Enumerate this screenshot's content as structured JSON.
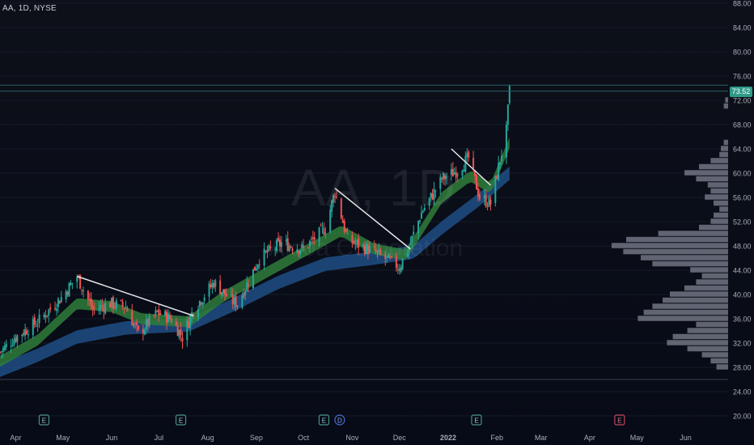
{
  "header": {
    "symbol_label": "AA, 1D, NYSE"
  },
  "watermark": {
    "symbol": "AA, 1D",
    "name": "Alcoa Corporation"
  },
  "colors": {
    "up": "#26a69a",
    "down": "#ef5350",
    "ema_band_fast": "#2f7d3a",
    "ema_band_down": "#8b2a3d",
    "ema_slow": "#1f4f86",
    "volume_profile": "#7f8290",
    "trendline": "#e6e6e6",
    "last_price": "#2f9a88"
  },
  "current_price": "73.52",
  "x_axis": {
    "labels": [
      "Apr",
      "May",
      "Jun",
      "Jul",
      "Aug",
      "Sep",
      "Oct",
      "Nov",
      "Dec",
      "2022",
      "Feb",
      "Mar",
      "Apr",
      "May",
      "Jun"
    ]
  },
  "y_axis": {
    "labels": [
      "20.00",
      "24.00",
      "28.00",
      "32.00",
      "36.00",
      "40.00",
      "44.00",
      "48.00",
      "52.00",
      "56.00",
      "60.00",
      "64.00",
      "68.00",
      "72.00",
      "76.00",
      "80.00",
      "84.00",
      "88.00"
    ]
  },
  "event_markers": [
    {
      "x_label": "E",
      "near": "Apr"
    },
    {
      "x_label": "E",
      "near": "Jul"
    },
    {
      "x_label": "E",
      "near": "Oct"
    },
    {
      "x_label": "D",
      "near": "Oct"
    },
    {
      "x_label": "E",
      "near": "2022"
    },
    {
      "x_label": "E",
      "near": "Apr",
      "future": true
    }
  ],
  "chart_data": {
    "type": "candlestick",
    "title": "AA, 1D, NYSE",
    "ylim": [
      19,
      89
    ],
    "price_path": [
      [
        "2021-03-22",
        30.5
      ],
      [
        "2021-04-01",
        33.0
      ],
      [
        "2021-04-15",
        35.5
      ],
      [
        "2021-04-30",
        39.5
      ],
      [
        "2021-05-10",
        43.0
      ],
      [
        "2021-05-20",
        37.5
      ],
      [
        "2021-05-31",
        38.5
      ],
      [
        "2021-06-10",
        38.0
      ],
      [
        "2021-06-18",
        33.5
      ],
      [
        "2021-06-30",
        37.0
      ],
      [
        "2021-07-09",
        36.0
      ],
      [
        "2021-07-16",
        33.0
      ],
      [
        "2021-07-23",
        37.5
      ],
      [
        "2021-08-05",
        42.0
      ],
      [
        "2021-08-16",
        39.0
      ],
      [
        "2021-08-20",
        38.5
      ],
      [
        "2021-09-03",
        46.0
      ],
      [
        "2021-09-17",
        48.5
      ],
      [
        "2021-10-01",
        47.5
      ],
      [
        "2021-10-15",
        51.0
      ],
      [
        "2021-10-21",
        57.0
      ],
      [
        "2021-10-29",
        49.0
      ],
      [
        "2021-11-15",
        47.0
      ],
      [
        "2021-12-01",
        44.5
      ],
      [
        "2021-12-08",
        48.5
      ],
      [
        "2021-12-15",
        53.5
      ],
      [
        "2021-12-28",
        59.0
      ],
      [
        "2022-01-07",
        60.5
      ],
      [
        "2022-01-14",
        62.5
      ],
      [
        "2022-01-21",
        56.0
      ],
      [
        "2022-01-28",
        55.0
      ],
      [
        "2022-02-02",
        61.0
      ],
      [
        "2022-02-07",
        67.0
      ],
      [
        "2022-02-09",
        73.52
      ]
    ],
    "ema_fast": [
      [
        "2021-03-22",
        29.0
      ],
      [
        "2021-04-15",
        32.5
      ],
      [
        "2021-05-10",
        38.5
      ],
      [
        "2021-06-01",
        38.0
      ],
      [
        "2021-06-20",
        36.0
      ],
      [
        "2021-07-20",
        35.5
      ],
      [
        "2021-08-10",
        39.5
      ],
      [
        "2021-09-10",
        44.0
      ],
      [
        "2021-10-01",
        47.0
      ],
      [
        "2021-10-25",
        50.5
      ],
      [
        "2021-11-15",
        47.5
      ],
      [
        "2021-12-05",
        46.5
      ],
      [
        "2021-12-28",
        56.0
      ],
      [
        "2022-01-15",
        59.5
      ],
      [
        "2022-01-28",
        57.5
      ],
      [
        "2022-02-09",
        65.0
      ]
    ],
    "ema_slow": [
      [
        "2021-03-22",
        27.5
      ],
      [
        "2021-04-15",
        30.0
      ],
      [
        "2021-05-10",
        33.0
      ],
      [
        "2021-06-10",
        34.5
      ],
      [
        "2021-07-20",
        35.0
      ],
      [
        "2021-08-15",
        38.0
      ],
      [
        "2021-09-15",
        42.0
      ],
      [
        "2021-10-15",
        45.0
      ],
      [
        "2021-11-15",
        46.0
      ],
      [
        "2021-12-10",
        47.0
      ],
      [
        "2021-12-28",
        51.0
      ],
      [
        "2022-01-20",
        55.5
      ],
      [
        "2022-02-09",
        60.0
      ]
    ],
    "trendlines": [
      {
        "from": [
          "2021-05-10",
          43.0
        ],
        "to": [
          "2021-07-23",
          36.5
        ]
      },
      {
        "from": [
          "2021-10-21",
          57.5
        ],
        "to": [
          "2021-12-08",
          47.5
        ]
      },
      {
        "from": [
          "2022-01-03",
          64.0
        ],
        "to": [
          "2022-01-28",
          58.0
        ]
      }
    ],
    "horizontal_lines": [
      74.5,
      73.52,
      26.0
    ],
    "volume_profile": [
      {
        "price": 28,
        "size": 0.08
      },
      {
        "price": 29,
        "size": 0.12
      },
      {
        "price": 30,
        "size": 0.18
      },
      {
        "price": 31,
        "size": 0.28
      },
      {
        "price": 32,
        "size": 0.42
      },
      {
        "price": 33,
        "size": 0.38
      },
      {
        "price": 34,
        "size": 0.28
      },
      {
        "price": 35,
        "size": 0.22
      },
      {
        "price": 36,
        "size": 0.62
      },
      {
        "price": 37,
        "size": 0.58
      },
      {
        "price": 38,
        "size": 0.52
      },
      {
        "price": 39,
        "size": 0.45
      },
      {
        "price": 40,
        "size": 0.4
      },
      {
        "price": 41,
        "size": 0.3
      },
      {
        "price": 42,
        "size": 0.22
      },
      {
        "price": 43,
        "size": 0.18
      },
      {
        "price": 44,
        "size": 0.26
      },
      {
        "price": 45,
        "size": 0.52
      },
      {
        "price": 46,
        "size": 0.6
      },
      {
        "price": 47,
        "size": 0.72
      },
      {
        "price": 48,
        "size": 0.8
      },
      {
        "price": 49,
        "size": 0.7
      },
      {
        "price": 50,
        "size": 0.48
      },
      {
        "price": 51,
        "size": 0.2
      },
      {
        "price": 52,
        "size": 0.12
      },
      {
        "price": 53,
        "size": 0.1
      },
      {
        "price": 54,
        "size": 0.06
      },
      {
        "price": 55,
        "size": 0.1
      },
      {
        "price": 56,
        "size": 0.16
      },
      {
        "price": 57,
        "size": 0.12
      },
      {
        "price": 58,
        "size": 0.14
      },
      {
        "price": 59,
        "size": 0.22
      },
      {
        "price": 60,
        "size": 0.3
      },
      {
        "price": 61,
        "size": 0.2
      },
      {
        "price": 62,
        "size": 0.12
      },
      {
        "price": 63,
        "size": 0.06
      },
      {
        "price": 64,
        "size": 0.05
      },
      {
        "price": 65,
        "size": 0.03
      },
      {
        "price": 71,
        "size": 0.03
      },
      {
        "price": 72,
        "size": 0.02
      }
    ]
  }
}
